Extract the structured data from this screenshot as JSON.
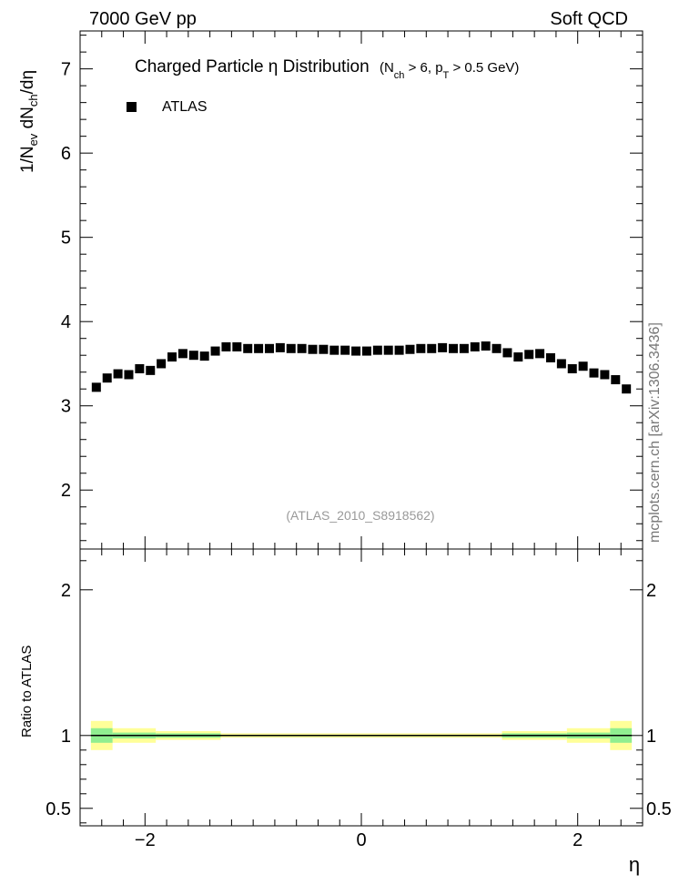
{
  "header": {
    "left": "7000 GeV pp",
    "right": "Soft QCD"
  },
  "title": {
    "main": "Charged Particle  η Distribution",
    "cut_open": "(N",
    "cut_sub1": "ch",
    "cut_mid": " > 6, p",
    "cut_sub2": "T",
    "cut_close": " > 0.5 GeV)"
  },
  "ylabel_main": {
    "p1": "1/N",
    "s1": "ev",
    "p2": " dN",
    "s2": "ch",
    "p3": "/dη"
  },
  "ylabel_ratio": "Ratio to ATLAS",
  "xlabel": "η",
  "legend": {
    "entry": "ATLAS"
  },
  "analysis_id": "(ATLAS_2010_S8918562)",
  "side_label": "mcplots.cern.ch [arXiv:1306.3436]",
  "colors": {
    "marker": "#000000",
    "band_outer": "#ffff99",
    "band_inner": "#90ee90",
    "analysis_text": "#999999",
    "side_text": "#777777"
  },
  "chart_data": [
    {
      "type": "scatter",
      "name": "main",
      "x_range": [
        -2.6,
        2.6
      ],
      "y_range": [
        1.3,
        7.45
      ],
      "x_ticks": [
        -2,
        0,
        2
      ],
      "x_tick_labels": [
        "−2",
        "0",
        "2"
      ],
      "y_ticks": [
        2,
        3,
        4,
        5,
        6,
        7
      ],
      "y_tick_labels": [
        "2",
        "3",
        "4",
        "5",
        "6",
        "7"
      ],
      "legend_position": "top-left",
      "series": [
        {
          "name": "ATLAS",
          "x": [
            -2.45,
            -2.35,
            -2.25,
            -2.15,
            -2.05,
            -1.95,
            -1.85,
            -1.75,
            -1.65,
            -1.55,
            -1.45,
            -1.35,
            -1.25,
            -1.15,
            -1.05,
            -0.95,
            -0.85,
            -0.75,
            -0.65,
            -0.55,
            -0.45,
            -0.35,
            -0.25,
            -0.15,
            -0.05,
            0.05,
            0.15,
            0.25,
            0.35,
            0.45,
            0.55,
            0.65,
            0.75,
            0.85,
            0.95,
            1.05,
            1.15,
            1.25,
            1.35,
            1.45,
            1.55,
            1.65,
            1.75,
            1.85,
            1.95,
            2.05,
            2.15,
            2.25,
            2.35,
            2.45
          ],
          "y": [
            3.22,
            3.33,
            3.38,
            3.37,
            3.44,
            3.42,
            3.5,
            3.58,
            3.62,
            3.6,
            3.59,
            3.65,
            3.7,
            3.7,
            3.68,
            3.68,
            3.68,
            3.69,
            3.68,
            3.68,
            3.67,
            3.67,
            3.66,
            3.66,
            3.65,
            3.65,
            3.66,
            3.66,
            3.66,
            3.67,
            3.68,
            3.68,
            3.69,
            3.68,
            3.68,
            3.7,
            3.71,
            3.68,
            3.63,
            3.58,
            3.61,
            3.62,
            3.57,
            3.5,
            3.44,
            3.47,
            3.39,
            3.37,
            3.31,
            3.2
          ]
        }
      ]
    },
    {
      "type": "area",
      "name": "ratio",
      "x_range": [
        -2.6,
        2.6
      ],
      "y_range": [
        0.38,
        2.28
      ],
      "x_ticks": [
        -2,
        0,
        2
      ],
      "x_tick_labels": [
        "−2",
        "0",
        "2"
      ],
      "y_ticks": [
        0.5,
        1,
        2
      ],
      "y_tick_labels": [
        "0.5",
        "1",
        "2"
      ],
      "reference_line": 1,
      "bands": [
        {
          "x0": -2.5,
          "x1": -2.3,
          "outer": [
            0.9,
            1.1
          ],
          "inner": [
            0.95,
            1.05
          ]
        },
        {
          "x0": -2.3,
          "x1": -1.9,
          "outer": [
            0.95,
            1.05
          ],
          "inner": [
            0.98,
            1.02
          ]
        },
        {
          "x0": -1.9,
          "x1": -1.3,
          "outer": [
            0.97,
            1.03
          ],
          "inner": [
            0.985,
            1.015
          ]
        },
        {
          "x0": -1.3,
          "x1": 1.3,
          "outer": [
            0.985,
            1.015
          ],
          "inner": [
            0.995,
            1.005
          ]
        },
        {
          "x0": 1.3,
          "x1": 1.9,
          "outer": [
            0.97,
            1.03
          ],
          "inner": [
            0.985,
            1.015
          ]
        },
        {
          "x0": 1.9,
          "x1": 2.3,
          "outer": [
            0.95,
            1.05
          ],
          "inner": [
            0.98,
            1.02
          ]
        },
        {
          "x0": 2.3,
          "x1": 2.5,
          "outer": [
            0.9,
            1.1
          ],
          "inner": [
            0.95,
            1.05
          ]
        }
      ]
    }
  ]
}
